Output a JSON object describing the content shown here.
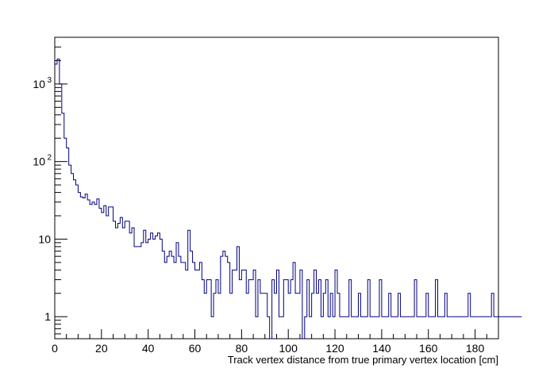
{
  "chart_data": {
    "type": "histogram",
    "title": "",
    "xlabel": "Track vertex distance from true primary vertex location [cm]",
    "ylabel": "",
    "xlim": [
      0,
      190
    ],
    "ylim": [
      0.52,
      4000
    ],
    "y_scale": "log",
    "grid": false,
    "legend": "none",
    "line_color": "#000080",
    "bin_width": 1,
    "x_ticks": [
      0,
      20,
      40,
      60,
      80,
      100,
      120,
      140,
      160,
      180
    ],
    "x_tick_labels": [
      "0",
      "20",
      "40",
      "60",
      "80",
      "100",
      "120",
      "140",
      "160",
      "180"
    ],
    "y_ticks": [
      {
        "value": 1,
        "label": "1"
      },
      {
        "value": 10,
        "label": "10"
      },
      {
        "value": 100,
        "label": "10",
        "exponent": "2"
      },
      {
        "value": 1000,
        "label": "10",
        "exponent": "3"
      }
    ],
    "values": [
      1800,
      2100,
      1000,
      420,
      200,
      150,
      90,
      70,
      58,
      50,
      40,
      35,
      34,
      38,
      32,
      28,
      30,
      28,
      33,
      25,
      22,
      27,
      20,
      26,
      26,
      17,
      14,
      16,
      19,
      14,
      17,
      17,
      12,
      14,
      8,
      8,
      8,
      9,
      13,
      9,
      10,
      12,
      10,
      11,
      12,
      10,
      7,
      5,
      6,
      7,
      6,
      5,
      9,
      6,
      5,
      5,
      4,
      13,
      7,
      5,
      4,
      4,
      5,
      3,
      2,
      3,
      3,
      1,
      2,
      3,
      2,
      6,
      7,
      6,
      5,
      2,
      4,
      4,
      8,
      3,
      4,
      4,
      2,
      3,
      3,
      4,
      1,
      3,
      2,
      2,
      2,
      1,
      0,
      3,
      2,
      4,
      1,
      1,
      3,
      3,
      2,
      3,
      5,
      2,
      2,
      4,
      0,
      1,
      3,
      1,
      2,
      4,
      2,
      3,
      1,
      2,
      3,
      1,
      2,
      1,
      4,
      2,
      1,
      1,
      1,
      1,
      3,
      1,
      1,
      1,
      2,
      1,
      1,
      1,
      3,
      1,
      1,
      1,
      1,
      3,
      1,
      1,
      1,
      2,
      1,
      1,
      1,
      2,
      1,
      1,
      1,
      1,
      1,
      1,
      3,
      1,
      1,
      1,
      1,
      2,
      1,
      1,
      1,
      3,
      1,
      1,
      1,
      2,
      1,
      1,
      1,
      1,
      1,
      1,
      1,
      1,
      1,
      2,
      1,
      1,
      1,
      1,
      1,
      1,
      1,
      1,
      1,
      2,
      1,
      1,
      1,
      1,
      1,
      1,
      1,
      1,
      1,
      1,
      1,
      1
    ]
  }
}
